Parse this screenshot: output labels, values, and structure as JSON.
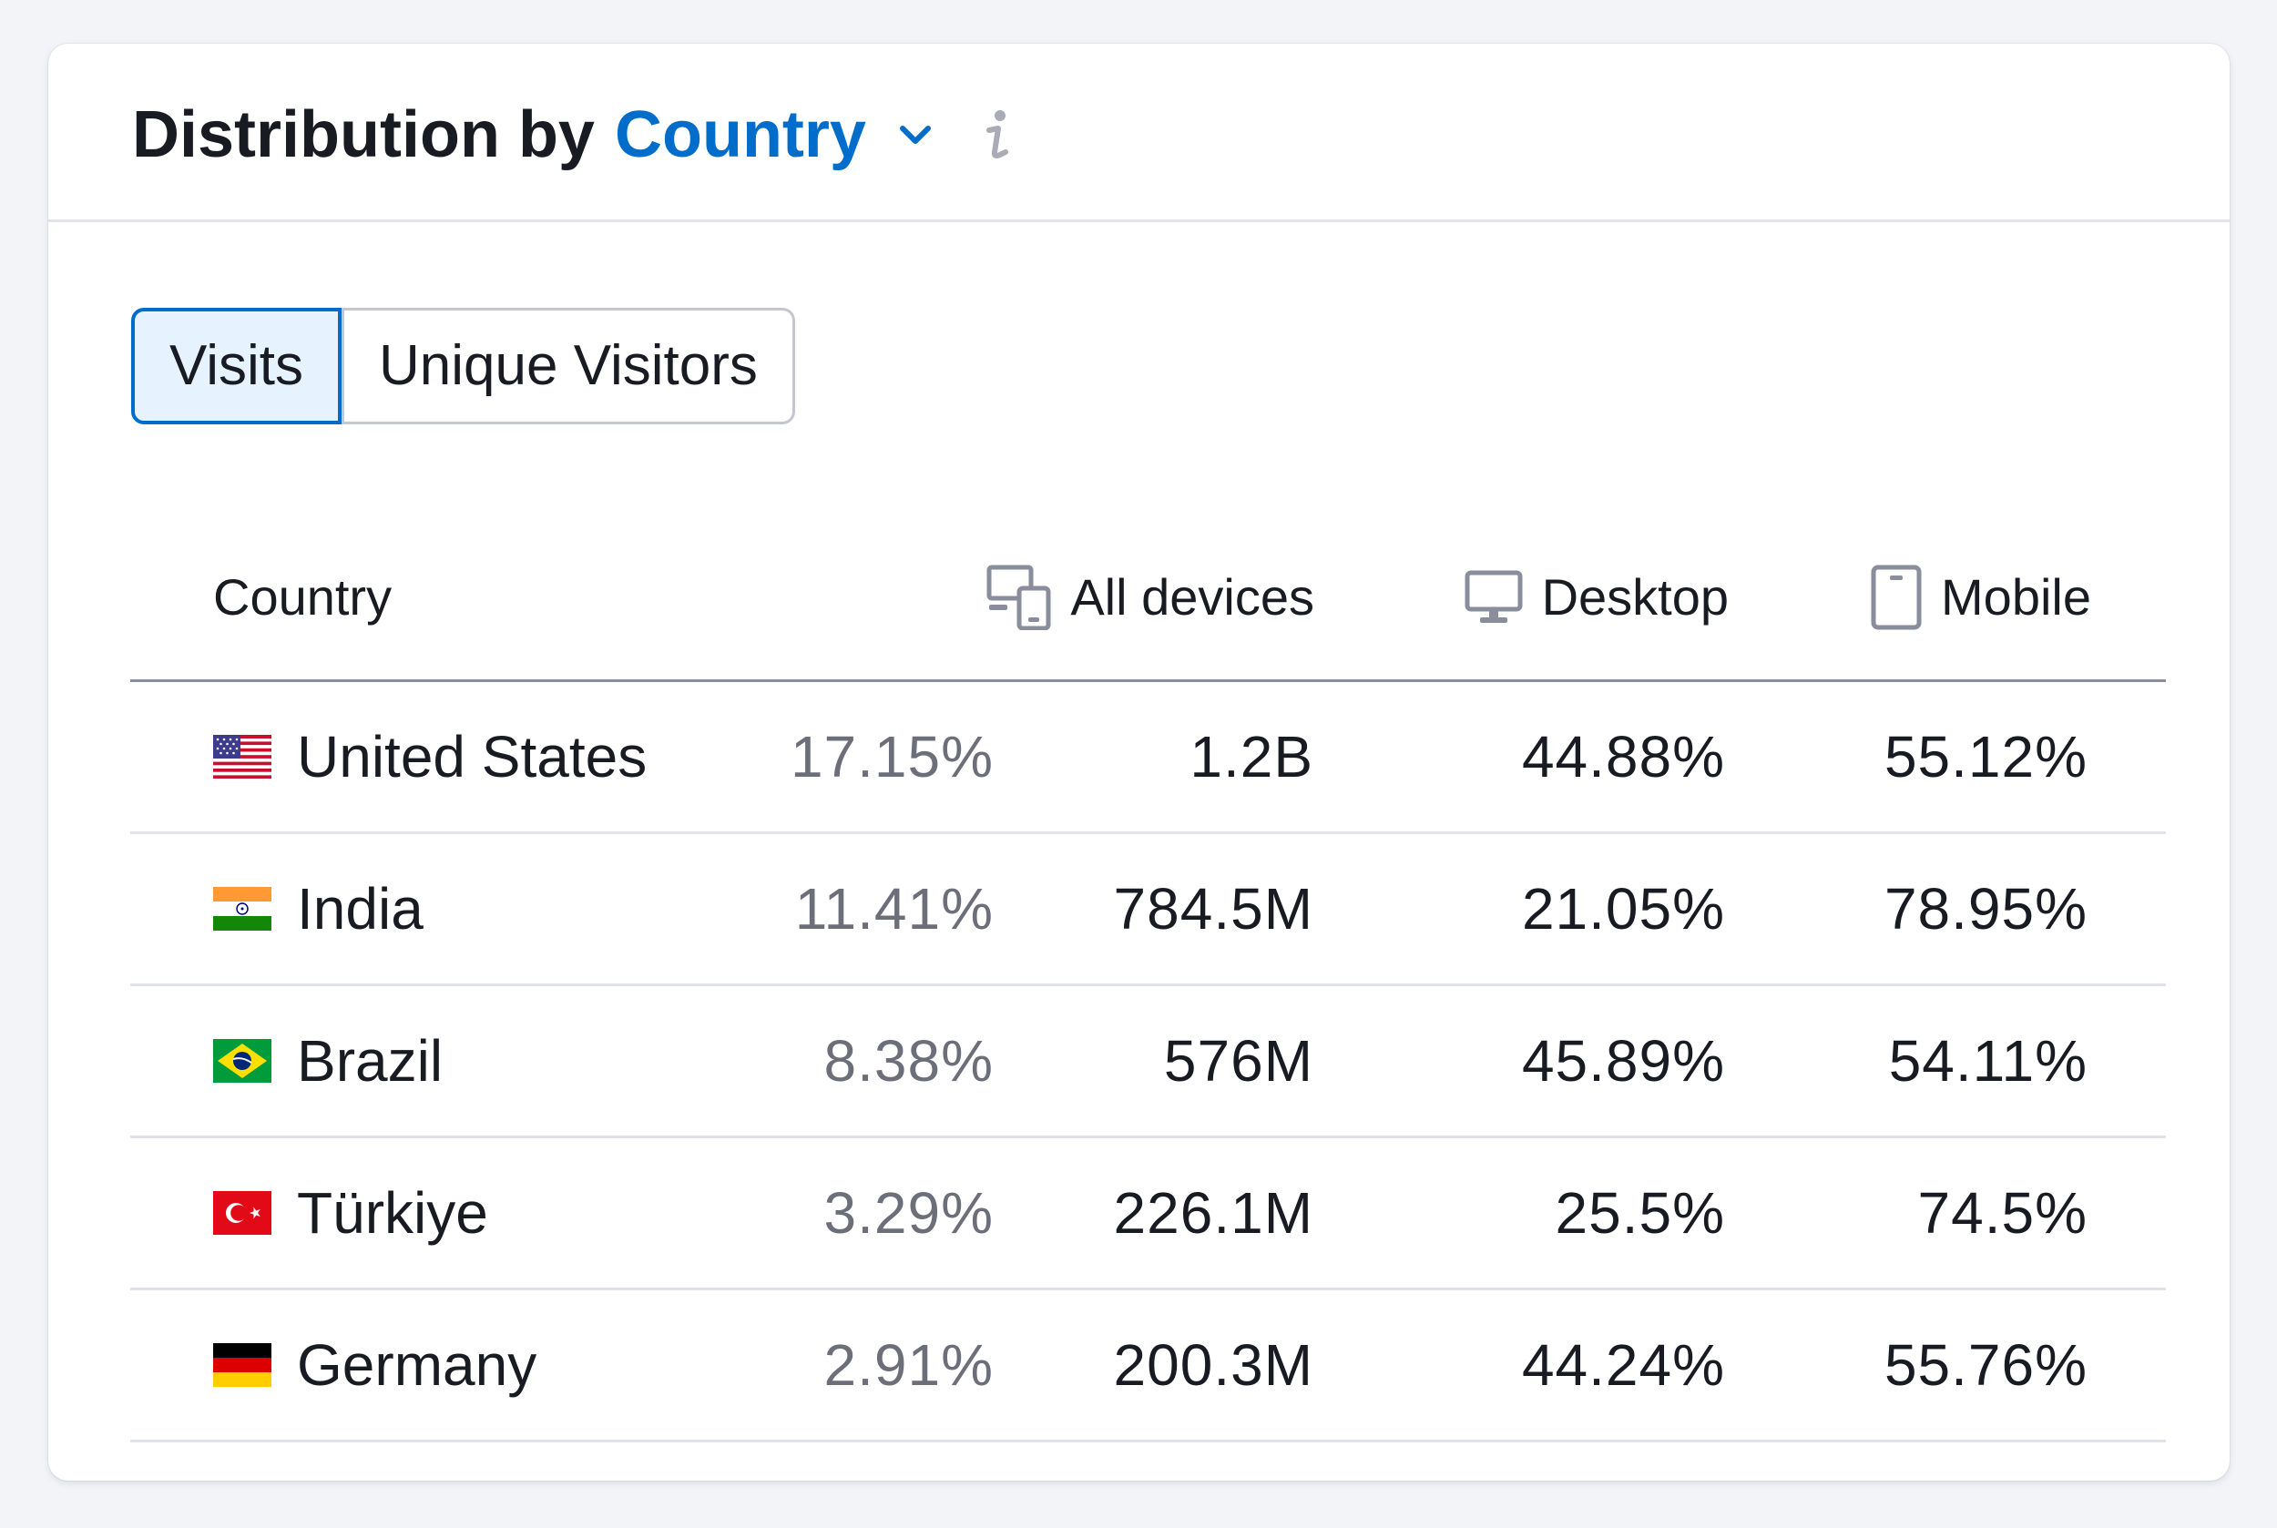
{
  "widget": {
    "title_prefix": "Distribution by",
    "title_select": "Country",
    "icons": {
      "dropdown": "chevron-down-icon",
      "info": "info-icon"
    },
    "colors": {
      "accent": "#006dca",
      "active_tab_bg": "#e6f3ff",
      "muted_text": "#6c6e79"
    }
  },
  "toggle": {
    "options": [
      {
        "label": "Visits",
        "active": true
      },
      {
        "label": "Unique Visitors",
        "active": false
      }
    ]
  },
  "table": {
    "headers": {
      "country": "Country",
      "all_devices": "All devices",
      "desktop": "Desktop",
      "mobile": "Mobile"
    },
    "header_icons": {
      "all_devices": "all-devices-icon",
      "desktop": "desktop-icon",
      "mobile": "mobile-icon"
    },
    "rows": [
      {
        "country": "United States",
        "flag": "us-flag-icon",
        "share": "17.15%",
        "all_devices": "1.2B",
        "desktop": "44.88%",
        "mobile": "55.12%"
      },
      {
        "country": "India",
        "flag": "india-flag-icon",
        "share": "11.41%",
        "all_devices": "784.5M",
        "desktop": "21.05%",
        "mobile": "78.95%"
      },
      {
        "country": "Brazil",
        "flag": "brazil-flag-icon",
        "share": "8.38%",
        "all_devices": "576M",
        "desktop": "45.89%",
        "mobile": "54.11%"
      },
      {
        "country": "Türkiye",
        "flag": "turkiye-flag-icon",
        "share": "3.29%",
        "all_devices": "226.1M",
        "desktop": "25.5%",
        "mobile": "74.5%"
      },
      {
        "country": "Germany",
        "flag": "germany-flag-icon",
        "share": "2.91%",
        "all_devices": "200.3M",
        "desktop": "44.24%",
        "mobile": "55.76%"
      }
    ]
  }
}
